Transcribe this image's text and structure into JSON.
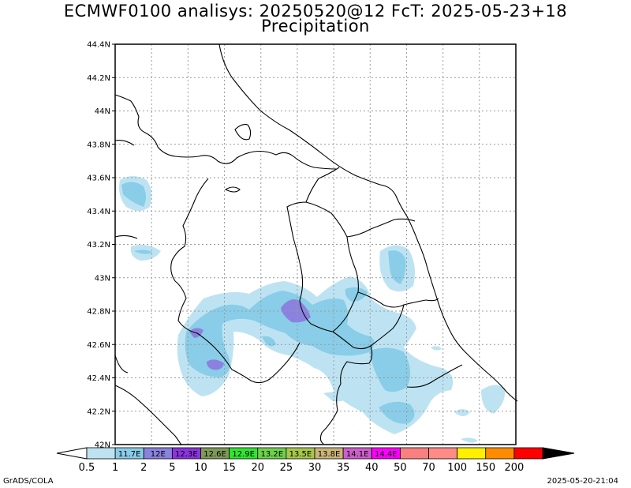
{
  "title": {
    "line1": "ECMWF0100 analisys: 20250520@12 FcT: 2025-05-23+18",
    "line2": "Precipitation"
  },
  "map": {
    "lat_labels": [
      "44.4N",
      "44.2N",
      "44N",
      "43.8N",
      "43.6N",
      "43.4N",
      "43.2N",
      "43N",
      "42.8N",
      "42.6N",
      "42.4N",
      "42.2N",
      "42N"
    ],
    "lon_labels": [
      "11.7E",
      "12E",
      "12.3E",
      "12.6E",
      "12.9E",
      "13.2E",
      "13.5E",
      "13.8E",
      "14.1E",
      "14.4E"
    ],
    "grid": "dotted",
    "precip_colors": {
      "light": "#bde3f2",
      "medium": "#89cde8",
      "heavy": "#8a82de"
    }
  },
  "colorbar": {
    "levels": [
      "0.5",
      "1",
      "2",
      "5",
      "10",
      "15",
      "20",
      "25",
      "30",
      "35",
      "40",
      "50",
      "70",
      "100",
      "150",
      "200"
    ],
    "colors": [
      "#bde3f2",
      "#89cde8",
      "#8a82de",
      "#8b34e0",
      "#7f9a58",
      "#31e531",
      "#6dd24c",
      "#a7c74a",
      "#cbb478",
      "#cd5fcb",
      "#ff00ff",
      "#f88080",
      "#fe8b86",
      "#fff000",
      "#ff8c00",
      "#ff0000",
      "#8b0000"
    ]
  },
  "footer": {
    "left": "GrADS/COLA",
    "right": "2025-05-20-21:04"
  }
}
